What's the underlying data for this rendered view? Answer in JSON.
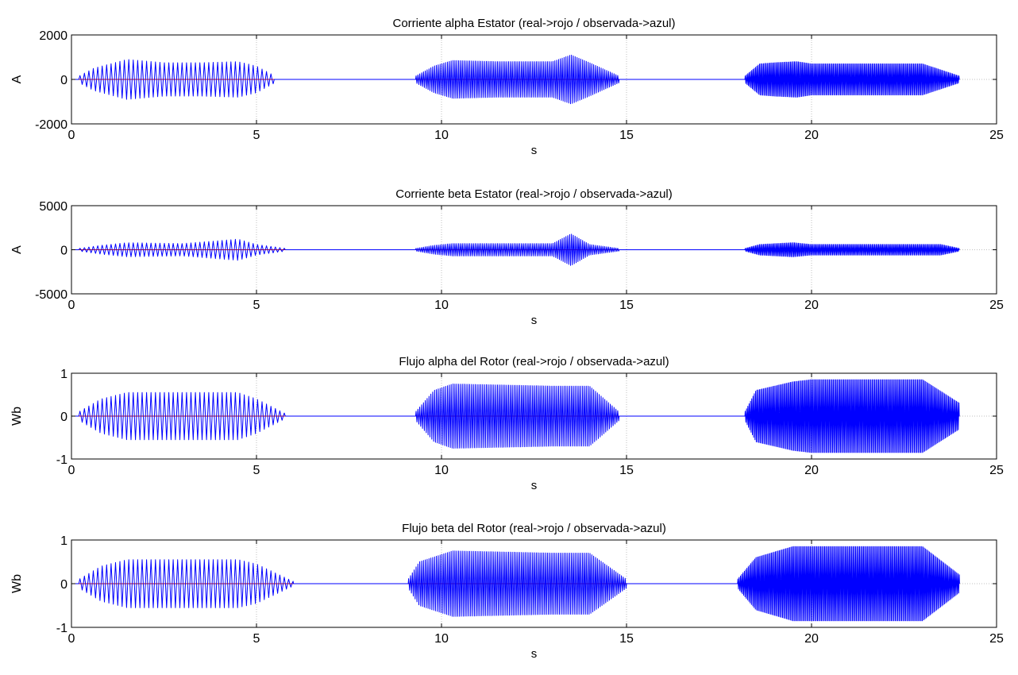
{
  "colors": {
    "real": "#cc0000",
    "observed": "#0000ff",
    "axis": "#000000",
    "grid": "#bfbfbf"
  },
  "chart_data": [
    {
      "type": "line",
      "title": "Corriente alpha Estator (real->rojo / observada->azul)",
      "xlabel": "s",
      "ylabel": "A",
      "xlim": [
        0,
        25
      ],
      "ylim": [
        -2000,
        2000
      ],
      "xticks": [
        0,
        5,
        10,
        15,
        20,
        25
      ],
      "yticks": [
        -2000,
        0,
        2000
      ],
      "grid": true,
      "series": [
        {
          "color_key": "observed",
          "bursts": [
            {
              "x": [
                0.2,
                5.5
              ],
              "envelope": [
                [
                  0.2,
                  150
                ],
                [
                  0.6,
                  500
                ],
                [
                  1.5,
                  900
                ],
                [
                  2.5,
                  750
                ],
                [
                  3.5,
                  750
                ],
                [
                  4.5,
                  800
                ],
                [
                  5.0,
                  600
                ],
                [
                  5.5,
                  150
                ]
              ],
              "period": 0.12
            },
            {
              "x": [
                9.3,
                14.8
              ],
              "envelope": [
                [
                  9.3,
                  150
                ],
                [
                  9.8,
                  600
                ],
                [
                  10.3,
                  850
                ],
                [
                  11.5,
                  800
                ],
                [
                  13.0,
                  800
                ],
                [
                  13.5,
                  1100
                ],
                [
                  14.0,
                  750
                ],
                [
                  14.8,
                  150
                ]
              ],
              "period": 0.05
            },
            {
              "x": [
                18.2,
                24.0
              ],
              "envelope": [
                [
                  18.2,
                  150
                ],
                [
                  18.6,
                  700
                ],
                [
                  19.0,
                  750
                ],
                [
                  19.6,
                  800
                ],
                [
                  20.0,
                  700
                ],
                [
                  23.0,
                  700
                ],
                [
                  24.0,
                  150
                ]
              ],
              "period": 0.035
            }
          ]
        }
      ]
    },
    {
      "type": "line",
      "title": "Corriente beta Estator (real->rojo / observada->azul)",
      "xlabel": "s",
      "ylabel": "A",
      "xlim": [
        0,
        25
      ],
      "ylim": [
        -5000,
        5000
      ],
      "xticks": [
        0,
        5,
        10,
        15,
        20,
        25
      ],
      "yticks": [
        -5000,
        0,
        5000
      ],
      "grid": true,
      "series": [
        {
          "color_key": "observed",
          "bursts": [
            {
              "x": [
                0.2,
                5.8
              ],
              "envelope": [
                [
                  0.2,
                  150
                ],
                [
                  0.8,
                  500
                ],
                [
                  1.5,
                  800
                ],
                [
                  3.0,
                  700
                ],
                [
                  4.5,
                  1200
                ],
                [
                  5.0,
                  600
                ],
                [
                  5.8,
                  150
                ]
              ],
              "period": 0.12
            },
            {
              "x": [
                9.3,
                14.8
              ],
              "envelope": [
                [
                  9.3,
                  150
                ],
                [
                  9.8,
                  500
                ],
                [
                  10.3,
                  700
                ],
                [
                  13.0,
                  700
                ],
                [
                  13.5,
                  1800
                ],
                [
                  14.0,
                  600
                ],
                [
                  14.8,
                  150
                ]
              ],
              "period": 0.05
            },
            {
              "x": [
                18.2,
                24.0
              ],
              "envelope": [
                [
                  18.2,
                  150
                ],
                [
                  18.6,
                  600
                ],
                [
                  19.5,
                  800
                ],
                [
                  20.0,
                  600
                ],
                [
                  23.5,
                  600
                ],
                [
                  24.0,
                  150
                ]
              ],
              "period": 0.035
            }
          ]
        }
      ]
    },
    {
      "type": "line",
      "title": "Flujo alpha del Rotor (real->rojo / observada->azul)",
      "xlabel": "s",
      "ylabel": "Wb",
      "xlim": [
        0,
        25
      ],
      "ylim": [
        -1,
        1
      ],
      "xticks": [
        0,
        5,
        10,
        15,
        20,
        25
      ],
      "yticks": [
        -1,
        0,
        1
      ],
      "grid": true,
      "series": [
        {
          "color_key": "observed",
          "bursts": [
            {
              "x": [
                0.2,
                5.8
              ],
              "envelope": [
                [
                  0.2,
                  0.1
                ],
                [
                  0.8,
                  0.4
                ],
                [
                  1.5,
                  0.55
                ],
                [
                  3.0,
                  0.55
                ],
                [
                  4.5,
                  0.55
                ],
                [
                  5.0,
                  0.4
                ],
                [
                  5.8,
                  0.05
                ]
              ],
              "period": 0.12
            },
            {
              "x": [
                9.3,
                14.8
              ],
              "envelope": [
                [
                  9.3,
                  0.1
                ],
                [
                  9.8,
                  0.6
                ],
                [
                  10.3,
                  0.75
                ],
                [
                  13.0,
                  0.7
                ],
                [
                  14.0,
                  0.7
                ],
                [
                  14.8,
                  0.1
                ]
              ],
              "period": 0.05
            },
            {
              "x": [
                18.2,
                24.0
              ],
              "envelope": [
                [
                  18.2,
                  0.1
                ],
                [
                  18.5,
                  0.6
                ],
                [
                  19.5,
                  0.8
                ],
                [
                  20.0,
                  0.85
                ],
                [
                  23.0,
                  0.85
                ],
                [
                  24.0,
                  0.3
                ]
              ],
              "period": 0.035
            }
          ]
        }
      ]
    },
    {
      "type": "line",
      "title": "Flujo beta del Rotor (real->rojo / observada->azul)",
      "xlabel": "s",
      "ylabel": "Wb",
      "xlim": [
        0,
        25
      ],
      "ylim": [
        -1,
        1
      ],
      "xticks": [
        0,
        5,
        10,
        15,
        20,
        25
      ],
      "yticks": [
        -1,
        0,
        1
      ],
      "grid": true,
      "series": [
        {
          "color_key": "observed",
          "bursts": [
            {
              "x": [
                0.2,
                6.0
              ],
              "envelope": [
                [
                  0.2,
                  0.1
                ],
                [
                  0.8,
                  0.4
                ],
                [
                  1.5,
                  0.55
                ],
                [
                  3.0,
                  0.55
                ],
                [
                  4.5,
                  0.55
                ],
                [
                  5.0,
                  0.45
                ],
                [
                  6.0,
                  0.05
                ]
              ],
              "period": 0.12
            },
            {
              "x": [
                9.1,
                15.0
              ],
              "envelope": [
                [
                  9.1,
                  0.1
                ],
                [
                  9.4,
                  0.5
                ],
                [
                  10.3,
                  0.75
                ],
                [
                  13.0,
                  0.7
                ],
                [
                  14.0,
                  0.7
                ],
                [
                  15.0,
                  0.1
                ]
              ],
              "period": 0.05
            },
            {
              "x": [
                18.0,
                24.0
              ],
              "envelope": [
                [
                  18.0,
                  0.1
                ],
                [
                  18.5,
                  0.6
                ],
                [
                  19.5,
                  0.85
                ],
                [
                  20.0,
                  0.85
                ],
                [
                  23.0,
                  0.85
                ],
                [
                  24.0,
                  0.2
                ]
              ],
              "period": 0.035
            }
          ]
        }
      ]
    }
  ]
}
